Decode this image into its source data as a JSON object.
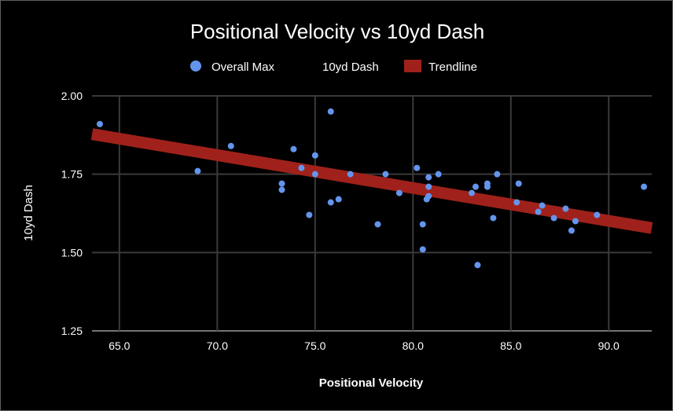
{
  "chart_data": {
    "type": "scatter",
    "title": "Positional Velocity vs 10yd Dash",
    "xlabel": "Positional Velocity",
    "ylabel": "10yd Dash",
    "xlim": [
      63.6,
      92.2
    ],
    "ylim": [
      1.25,
      2.0
    ],
    "x_ticks": [
      65,
      70,
      75,
      80,
      85,
      90
    ],
    "x_tick_labels": [
      "65.0",
      "70.0",
      "75.0",
      "80.0",
      "85.0",
      "90.0"
    ],
    "y_ticks": [
      1.25,
      1.5,
      1.75,
      2.0
    ],
    "y_tick_labels": [
      "1.25",
      "1.50",
      "1.75",
      "2.00"
    ],
    "grid": true,
    "legend_position": "top",
    "legend": [
      {
        "label": "Overall Max",
        "marker": "circle",
        "color": "#6495ed"
      },
      {
        "label": "10yd Dash",
        "marker": "none",
        "color": ""
      },
      {
        "label": "Trendline",
        "marker": "square",
        "color": "#a0211b"
      }
    ],
    "series": [
      {
        "name": "Overall Max",
        "color": "#6495ed",
        "points": [
          [
            64.0,
            1.91
          ],
          [
            69.0,
            1.76
          ],
          [
            70.7,
            1.84
          ],
          [
            73.3,
            1.72
          ],
          [
            73.3,
            1.7
          ],
          [
            73.9,
            1.83
          ],
          [
            74.3,
            1.77
          ],
          [
            74.7,
            1.62
          ],
          [
            75.0,
            1.81
          ],
          [
            75.0,
            1.75
          ],
          [
            75.8,
            1.95
          ],
          [
            75.8,
            1.66
          ],
          [
            76.2,
            1.67
          ],
          [
            76.8,
            1.75
          ],
          [
            78.2,
            1.59
          ],
          [
            78.6,
            1.75
          ],
          [
            79.3,
            1.69
          ],
          [
            80.2,
            1.77
          ],
          [
            80.5,
            1.59
          ],
          [
            80.5,
            1.51
          ],
          [
            80.8,
            1.74
          ],
          [
            80.8,
            1.71
          ],
          [
            80.8,
            1.68
          ],
          [
            80.7,
            1.67
          ],
          [
            81.3,
            1.75
          ],
          [
            83.0,
            1.69
          ],
          [
            83.2,
            1.71
          ],
          [
            83.3,
            1.46
          ],
          [
            83.8,
            1.72
          ],
          [
            83.8,
            1.71
          ],
          [
            84.1,
            1.61
          ],
          [
            84.3,
            1.75
          ],
          [
            85.3,
            1.66
          ],
          [
            85.4,
            1.72
          ],
          [
            86.4,
            1.63
          ],
          [
            86.6,
            1.65
          ],
          [
            87.2,
            1.61
          ],
          [
            87.8,
            1.64
          ],
          [
            88.1,
            1.57
          ],
          [
            88.3,
            1.6
          ],
          [
            89.4,
            1.62
          ],
          [
            91.8,
            1.71
          ]
        ]
      }
    ],
    "trendline": {
      "name": "Trendline",
      "color": "#a0211b",
      "x": [
        63.6,
        92.2
      ],
      "y": [
        1.878,
        1.578
      ]
    }
  }
}
